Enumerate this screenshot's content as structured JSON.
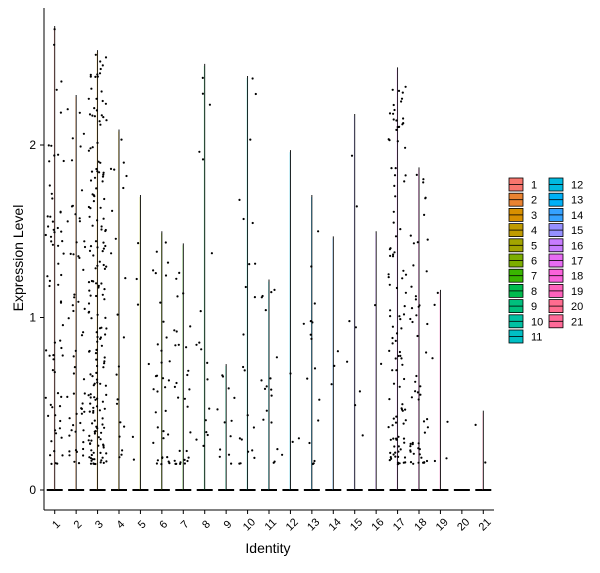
{
  "chart_data": {
    "type": "violin",
    "xlabel": "Identity",
    "ylabel": "Expression Level",
    "ylim": [
      0,
      2.75
    ],
    "y_ticks": [
      0,
      1,
      2
    ],
    "grid": false,
    "legend_position": "right",
    "categories": [
      "1",
      "2",
      "3",
      "4",
      "5",
      "6",
      "7",
      "8",
      "9",
      "10",
      "11",
      "12",
      "13",
      "14",
      "15",
      "16",
      "17",
      "18",
      "19",
      "20",
      "21"
    ],
    "colors": [
      "#F8766D",
      "#EA8331",
      "#D89000",
      "#C09B00",
      "#A3A500",
      "#7CAE00",
      "#39B600",
      "#00BB4E",
      "#00BF7D",
      "#00C1A3",
      "#00BFC4",
      "#00BAE0",
      "#00B0F6",
      "#35A2FF",
      "#9590FF",
      "#C77CFF",
      "#E76BF3",
      "#FA62DB",
      "#FF62BC",
      "#FF6C90",
      "#FF6A98"
    ],
    "max_values": [
      2.69,
      2.29,
      2.55,
      2.09,
      1.71,
      1.5,
      1.43,
      2.47,
      0.73,
      2.4,
      1.22,
      1.97,
      1.71,
      1.47,
      2.18,
      1.5,
      2.45,
      1.87,
      1.16,
      0.0,
      0.46
    ],
    "point_counts": [
      70,
      60,
      180,
      22,
      6,
      35,
      30,
      18,
      12,
      22,
      18,
      4,
      16,
      3,
      8,
      2,
      110,
      55,
      6,
      0,
      2
    ]
  }
}
